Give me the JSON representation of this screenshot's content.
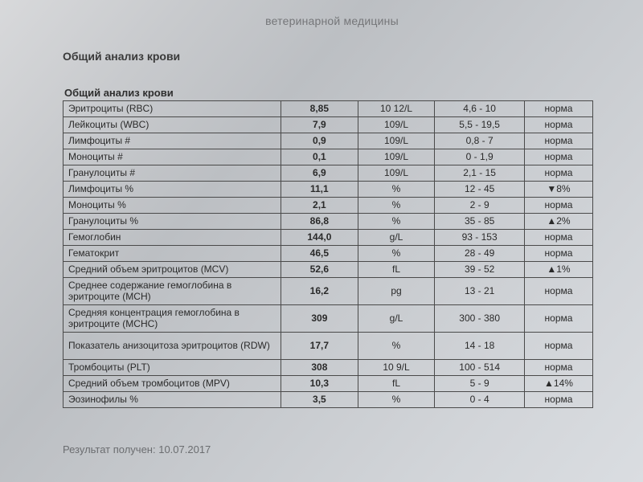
{
  "header_faded": "ветеринарной медицины",
  "title": "Общий анализ крови",
  "subtitle": "Общий анализ крови",
  "footer": "Результат получен: 10.07.2017",
  "rows": [
    {
      "name": "Эритроциты (RBC)",
      "value": "8,85",
      "unit": "10 12/L",
      "range": "4,6 - 10",
      "status": "норма",
      "tall": false
    },
    {
      "name": "Лейкоциты (WBC)",
      "value": "7,9",
      "unit": "109/L",
      "range": "5,5 - 19,5",
      "status": "норма",
      "tall": false
    },
    {
      "name": "Лимфоциты #",
      "value": "0,9",
      "unit": "109/L",
      "range": "0,8 - 7",
      "status": "норма",
      "tall": false
    },
    {
      "name": "Моноциты #",
      "value": "0,1",
      "unit": "109/L",
      "range": "0 - 1,9",
      "status": "норма",
      "tall": false
    },
    {
      "name": "Гранулоциты #",
      "value": "6,9",
      "unit": "109/L",
      "range": "2,1 - 15",
      "status": "норма",
      "tall": false
    },
    {
      "name": "Лимфоциты %",
      "value": "11,1",
      "unit": "%",
      "range": "12 - 45",
      "status": "▼8%",
      "tall": false
    },
    {
      "name": "Моноциты %",
      "value": "2,1",
      "unit": "%",
      "range": "2 - 9",
      "status": "норма",
      "tall": false
    },
    {
      "name": "Гранулоциты %",
      "value": "86,8",
      "unit": "%",
      "range": "35 - 85",
      "status": "▲2%",
      "tall": false
    },
    {
      "name": "Гемоглобин",
      "value": "144,0",
      "unit": "g/L",
      "range": "93 - 153",
      "status": "норма",
      "tall": false
    },
    {
      "name": "Гематокрит",
      "value": "46,5",
      "unit": "%",
      "range": "28 - 49",
      "status": "норма",
      "tall": false
    },
    {
      "name": "Средний объем эритроцитов (MCV)",
      "value": "52,6",
      "unit": "fL",
      "range": "39 - 52",
      "status": "▲1%",
      "tall": false
    },
    {
      "name": "Среднее содержание гемоглобина в эритроците (MCH)",
      "value": "16,2",
      "unit": "pg",
      "range": "13 - 21",
      "status": "норма",
      "tall": true
    },
    {
      "name": "Средняя концентрация гемоглобина в эритроците (MCHC)",
      "value": "309",
      "unit": "g/L",
      "range": "300 - 380",
      "status": "норма",
      "tall": true
    },
    {
      "name": "Показатель анизоцитоза эритроцитов (RDW)",
      "value": "17,7",
      "unit": "%",
      "range": "14 - 18",
      "status": "норма",
      "tall": true
    },
    {
      "name": "Тромбоциты (PLT)",
      "value": "308",
      "unit": "10 9/L",
      "range": "100 - 514",
      "status": "норма",
      "tall": false
    },
    {
      "name": "Средний объем тромбоцитов (MPV)",
      "value": "10,3",
      "unit": "fL",
      "range": "5 - 9",
      "status": "▲14%",
      "tall": false
    },
    {
      "name": "Эозинофилы %",
      "value": "3,5",
      "unit": "%",
      "range": "0 - 4",
      "status": "норма",
      "tall": false
    }
  ]
}
